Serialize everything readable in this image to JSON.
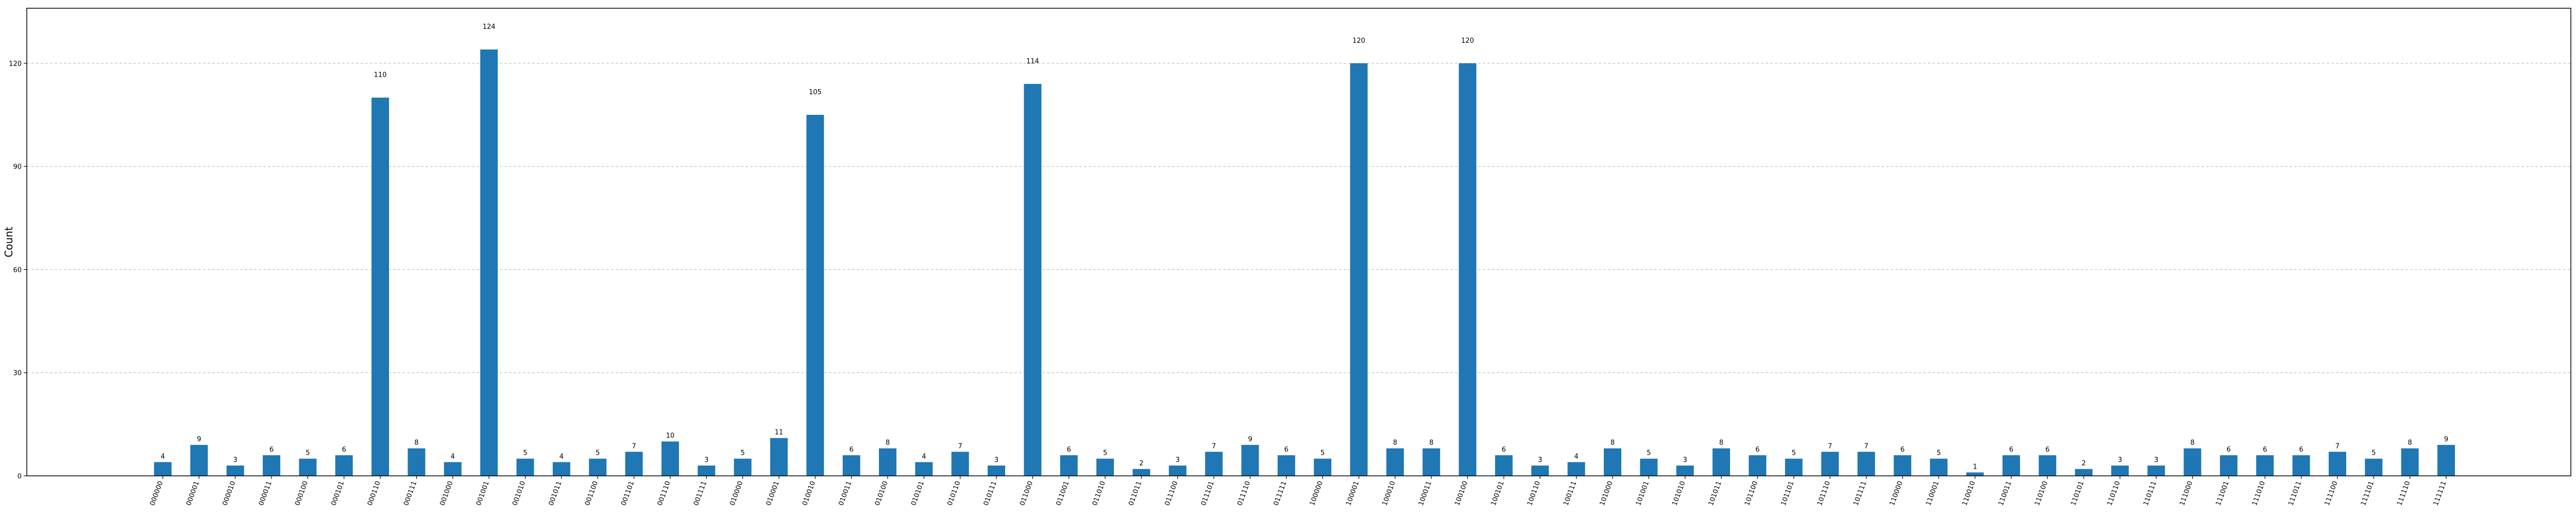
{
  "chart_data": {
    "type": "bar",
    "title": "",
    "xlabel": "",
    "ylabel": "Count",
    "ylim": [
      0,
      136
    ],
    "yticks": [
      0,
      30,
      60,
      90,
      120
    ],
    "grid": "y-dashed",
    "bar_color": "#1f77b4",
    "categories": [
      "000000",
      "000001",
      "000010",
      "000011",
      "000100",
      "000101",
      "000110",
      "000111",
      "001000",
      "001001",
      "001010",
      "001011",
      "001100",
      "001101",
      "001110",
      "001111",
      "010000",
      "010001",
      "010010",
      "010011",
      "010100",
      "010101",
      "010110",
      "010111",
      "011000",
      "011001",
      "011010",
      "011011",
      "011100",
      "011101",
      "011110",
      "011111",
      "100000",
      "100001",
      "100010",
      "100011",
      "100100",
      "100101",
      "100110",
      "100111",
      "101000",
      "101001",
      "101010",
      "101011",
      "101100",
      "101101",
      "101110",
      "101111",
      "110000",
      "110001",
      "110010",
      "110011",
      "110100",
      "110101",
      "110110",
      "110111",
      "111000",
      "111001",
      "111010",
      "111011",
      "111100",
      "111101",
      "111110",
      "111111"
    ],
    "values": [
      4,
      9,
      3,
      6,
      5,
      6,
      110,
      8,
      4,
      124,
      5,
      4,
      5,
      7,
      10,
      3,
      5,
      11,
      105,
      6,
      8,
      4,
      7,
      3,
      114,
      6,
      5,
      2,
      3,
      7,
      9,
      6,
      5,
      120,
      8,
      8,
      120,
      6,
      3,
      4,
      8,
      5,
      3,
      8,
      6,
      5,
      7,
      7,
      6,
      5,
      1,
      6,
      6,
      2,
      3,
      3,
      8,
      6,
      6,
      6,
      7,
      5,
      8,
      9
    ]
  }
}
